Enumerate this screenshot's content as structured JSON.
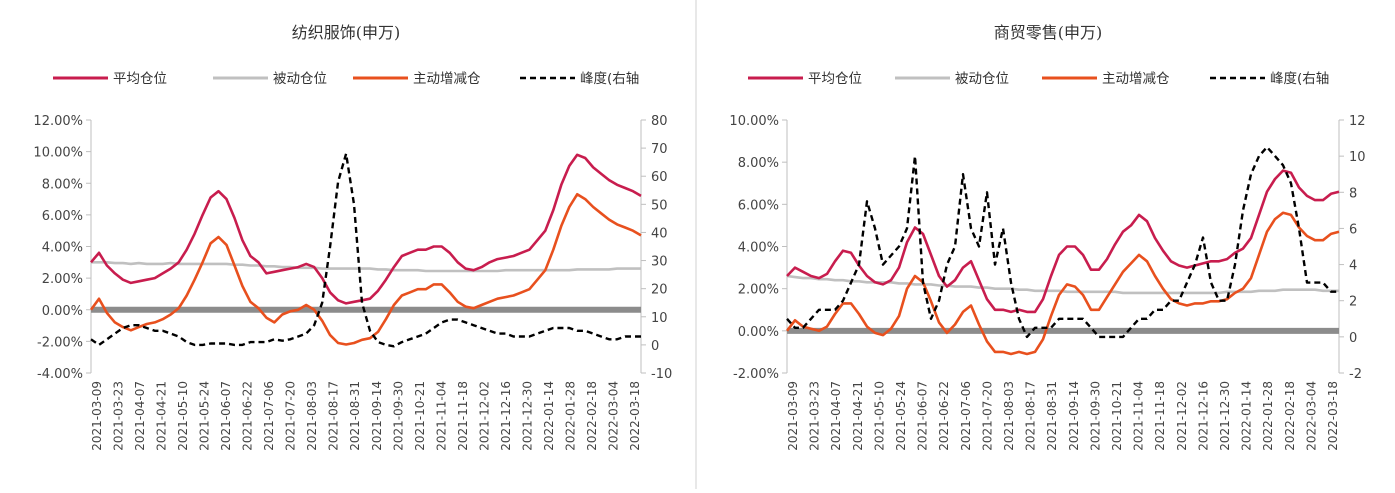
{
  "legend": {
    "avg": "平均仓位",
    "passive": "被动仓位",
    "active": "主动增减仓",
    "peak": "峰度(右轴"
  },
  "colors": {
    "avg": "#c81d4e",
    "passive": "#c0c0c0",
    "active": "#e8501e",
    "peak": "#000000",
    "zero_band": "#8c8c8c"
  },
  "xlabels": [
    "2021-03-09",
    "2021-03-23",
    "2021-04-07",
    "2021-04-21",
    "2021-05-10",
    "2021-05-24",
    "2021-06-07",
    "2021-06-22",
    "2021-07-06",
    "2021-07-20",
    "2021-08-03",
    "2021-08-17",
    "2021-08-31",
    "2021-09-14",
    "2021-09-30",
    "2021-10-21",
    "2021-11-04",
    "2021-11-18",
    "2021-12-02",
    "2021-12-16",
    "2021-12-30",
    "2022-01-14",
    "2022-01-28",
    "2022-02-18",
    "2022-03-04",
    "2022-03-18"
  ],
  "chart_data": [
    {
      "type": "line",
      "title": "纺织服饰(申万)",
      "ylim": [
        -4,
        12
      ],
      "yticks": [
        "-4.00%",
        "-2.00%",
        "0.00%",
        "2.00%",
        "4.00%",
        "6.00%",
        "8.00%",
        "10.00%",
        "12.00%"
      ],
      "y2lim": [
        -10,
        80
      ],
      "y2ticks": [
        "-10",
        "0",
        "10",
        "20",
        "30",
        "40",
        "50",
        "60",
        "70",
        "80"
      ],
      "series": [
        {
          "name": "平均仓位",
          "axis": "left",
          "values": [
            3.0,
            3.6,
            2.8,
            2.3,
            1.9,
            1.7,
            1.8,
            1.9,
            2.0,
            2.3,
            2.6,
            3.0,
            3.8,
            4.8,
            6.0,
            7.1,
            7.5,
            7.0,
            5.8,
            4.4,
            3.4,
            3.0,
            2.3,
            2.4,
            2.5,
            2.6,
            2.7,
            2.9,
            2.7,
            2.0,
            1.1,
            0.6,
            0.4,
            0.5,
            0.6,
            0.7,
            1.2,
            1.9,
            2.7,
            3.4,
            3.6,
            3.8,
            3.8,
            4.0,
            4.0,
            3.6,
            3.0,
            2.6,
            2.5,
            2.7,
            3.0,
            3.2,
            3.3,
            3.4,
            3.6,
            3.8,
            4.4,
            5.0,
            6.3,
            7.9,
            9.1,
            9.8,
            9.6,
            9.0,
            8.6,
            8.2,
            7.9,
            7.7,
            7.5,
            7.2
          ]
        },
        {
          "name": "被动仓位",
          "axis": "left",
          "values": [
            3.0,
            3.0,
            3.0,
            2.95,
            2.95,
            2.9,
            2.95,
            2.9,
            2.9,
            2.9,
            2.95,
            2.9,
            2.9,
            2.9,
            2.9,
            2.9,
            2.9,
            2.9,
            2.85,
            2.85,
            2.8,
            2.8,
            2.75,
            2.75,
            2.7,
            2.7,
            2.65,
            2.65,
            2.65,
            2.6,
            2.6,
            2.6,
            2.6,
            2.6,
            2.6,
            2.6,
            2.55,
            2.55,
            2.5,
            2.5,
            2.5,
            2.5,
            2.45,
            2.45,
            2.45,
            2.45,
            2.45,
            2.45,
            2.45,
            2.45,
            2.45,
            2.45,
            2.5,
            2.5,
            2.5,
            2.5,
            2.5,
            2.5,
            2.5,
            2.5,
            2.5,
            2.55,
            2.55,
            2.55,
            2.55,
            2.55,
            2.6,
            2.6,
            2.6,
            2.6
          ]
        },
        {
          "name": "主动增减仓",
          "axis": "left",
          "values": [
            0.0,
            0.7,
            -0.2,
            -0.8,
            -1.1,
            -1.3,
            -1.1,
            -0.9,
            -0.8,
            -0.6,
            -0.3,
            0.1,
            0.9,
            1.9,
            3.0,
            4.2,
            4.6,
            4.1,
            2.8,
            1.5,
            0.5,
            0.1,
            -0.5,
            -0.8,
            -0.3,
            -0.1,
            0.0,
            0.3,
            0.0,
            -0.7,
            -1.6,
            -2.1,
            -2.2,
            -2.1,
            -1.9,
            -1.8,
            -1.4,
            -0.6,
            0.3,
            0.9,
            1.1,
            1.3,
            1.3,
            1.6,
            1.6,
            1.1,
            0.5,
            0.2,
            0.1,
            0.3,
            0.5,
            0.7,
            0.8,
            0.9,
            1.1,
            1.3,
            1.9,
            2.5,
            3.8,
            5.3,
            6.5,
            7.3,
            7.0,
            6.5,
            6.1,
            5.7,
            5.4,
            5.2,
            5.0,
            4.7
          ]
        },
        {
          "name": "峰度(右轴",
          "axis": "right",
          "values": [
            2,
            0,
            2,
            4,
            6,
            7,
            7,
            6,
            5,
            5,
            4,
            3,
            1,
            0,
            0,
            0.5,
            0.5,
            0.5,
            0,
            0,
            1,
            1,
            1,
            2,
            1.5,
            2,
            3,
            4,
            7,
            15,
            35,
            58,
            68,
            50,
            15,
            5,
            1,
            0,
            -0.5,
            1,
            2,
            3,
            4,
            6,
            8,
            9,
            9,
            8,
            7,
            6,
            5,
            4,
            4,
            3,
            3,
            3,
            4,
            5,
            6,
            6,
            6,
            5,
            5,
            4,
            3,
            2,
            2,
            3,
            3,
            3
          ]
        }
      ]
    },
    {
      "type": "line",
      "title": "商贸零售(申万)",
      "ylim": [
        -2,
        10
      ],
      "yticks": [
        "-2.00%",
        "0.00%",
        "2.00%",
        "4.00%",
        "6.00%",
        "8.00%",
        "10.00%"
      ],
      "y2lim": [
        -2,
        12
      ],
      "y2ticks": [
        "-2",
        "0",
        "2",
        "4",
        "6",
        "8",
        "10",
        "12"
      ],
      "series": [
        {
          "name": "平均仓位",
          "axis": "left",
          "values": [
            2.6,
            3.0,
            2.8,
            2.6,
            2.5,
            2.7,
            3.3,
            3.8,
            3.7,
            3.1,
            2.6,
            2.3,
            2.2,
            2.4,
            3.0,
            4.2,
            4.9,
            4.6,
            3.6,
            2.6,
            2.1,
            2.4,
            3.0,
            3.3,
            2.4,
            1.5,
            1.0,
            1.0,
            0.9,
            1.0,
            0.9,
            0.9,
            1.5,
            2.6,
            3.6,
            4.0,
            4.0,
            3.6,
            2.9,
            2.9,
            3.4,
            4.1,
            4.7,
            5.0,
            5.5,
            5.2,
            4.4,
            3.8,
            3.3,
            3.1,
            3.0,
            3.1,
            3.2,
            3.3,
            3.3,
            3.4,
            3.7,
            3.9,
            4.4,
            5.5,
            6.6,
            7.2,
            7.6,
            7.5,
            6.8,
            6.4,
            6.2,
            6.2,
            6.5,
            6.6
          ]
        },
        {
          "name": "被动仓位",
          "axis": "left",
          "values": [
            2.6,
            2.55,
            2.5,
            2.5,
            2.45,
            2.45,
            2.4,
            2.4,
            2.35,
            2.35,
            2.3,
            2.3,
            2.3,
            2.3,
            2.25,
            2.25,
            2.2,
            2.2,
            2.2,
            2.15,
            2.15,
            2.1,
            2.1,
            2.1,
            2.05,
            2.05,
            2.0,
            2.0,
            2.0,
            1.95,
            1.95,
            1.9,
            1.9,
            1.9,
            1.9,
            1.85,
            1.85,
            1.85,
            1.85,
            1.85,
            1.85,
            1.85,
            1.8,
            1.8,
            1.8,
            1.8,
            1.8,
            1.8,
            1.8,
            1.8,
            1.8,
            1.8,
            1.8,
            1.8,
            1.8,
            1.85,
            1.85,
            1.85,
            1.85,
            1.9,
            1.9,
            1.9,
            1.95,
            1.95,
            1.95,
            1.95,
            1.95,
            1.9,
            1.9,
            1.9
          ]
        },
        {
          "name": "主动增减仓",
          "axis": "left",
          "values": [
            0.0,
            0.5,
            0.2,
            0.1,
            0.0,
            0.2,
            0.8,
            1.3,
            1.3,
            0.8,
            0.2,
            -0.1,
            -0.2,
            0.1,
            0.7,
            2.0,
            2.6,
            2.3,
            1.4,
            0.4,
            -0.1,
            0.3,
            0.9,
            1.2,
            0.3,
            -0.5,
            -1.0,
            -1.0,
            -1.1,
            -1.0,
            -1.1,
            -1.0,
            -0.4,
            0.7,
            1.7,
            2.2,
            2.1,
            1.7,
            1.0,
            1.0,
            1.6,
            2.2,
            2.8,
            3.2,
            3.6,
            3.3,
            2.6,
            2.0,
            1.5,
            1.3,
            1.2,
            1.3,
            1.3,
            1.4,
            1.4,
            1.5,
            1.8,
            2.0,
            2.5,
            3.6,
            4.7,
            5.3,
            5.6,
            5.5,
            4.9,
            4.5,
            4.3,
            4.3,
            4.6,
            4.7
          ]
        },
        {
          "name": "峰度(右轴",
          "axis": "right",
          "values": [
            1,
            0.5,
            0.5,
            1,
            1.5,
            1.5,
            1.5,
            2,
            3,
            4,
            7.5,
            6,
            4,
            4.5,
            5,
            6,
            10,
            3,
            1,
            2,
            4,
            5,
            9,
            6,
            5,
            8,
            4,
            6,
            3,
            1,
            0,
            0.5,
            0.5,
            0.5,
            1,
            1,
            1,
            1,
            0.5,
            0,
            0,
            0,
            0,
            0.5,
            1,
            1,
            1.5,
            1.5,
            2,
            2,
            3,
            4,
            5.5,
            3,
            2,
            2,
            4,
            7,
            9,
            10,
            10.5,
            10,
            9.5,
            8.5,
            6,
            3,
            3,
            3,
            2.5,
            2.5
          ]
        }
      ]
    }
  ]
}
